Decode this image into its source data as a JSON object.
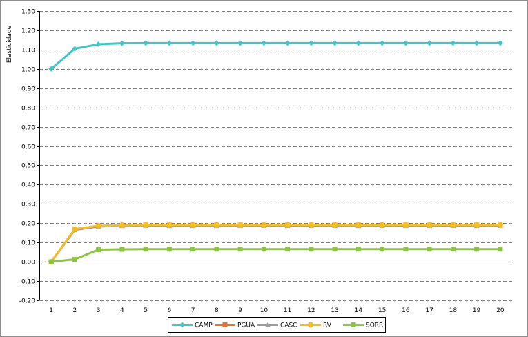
{
  "chart_data": {
    "type": "line",
    "title": "",
    "xlabel": "",
    "ylabel": "Elasticidade",
    "x": [
      1,
      2,
      3,
      4,
      5,
      6,
      7,
      8,
      9,
      10,
      11,
      12,
      13,
      14,
      15,
      16,
      17,
      18,
      19,
      20
    ],
    "x_tick_labels": [
      "1",
      "2",
      "3",
      "4",
      "5",
      "6",
      "7",
      "8",
      "9",
      "10",
      "11",
      "12",
      "13",
      "14",
      "15",
      "16",
      "17",
      "18",
      "19",
      "20"
    ],
    "ylim": [
      -0.2,
      1.3
    ],
    "y_ticks": [
      -0.2,
      -0.1,
      0.0,
      0.1,
      0.2,
      0.3,
      0.4,
      0.5,
      0.6,
      0.7,
      0.8,
      0.9,
      1.0,
      1.1,
      1.2,
      1.3
    ],
    "y_tick_labels": [
      "-0,20",
      "-0,10",
      "0,00",
      "0,10",
      "0,20",
      "0,30",
      "0,40",
      "0,50",
      "0,60",
      "0,70",
      "0,80",
      "0,90",
      "1,00",
      "1,10",
      "1,20",
      "1,30"
    ],
    "grid": "horizontal dashed",
    "legend_position": "bottom",
    "series": [
      {
        "name": "CAMP",
        "color": "#3fc6c6",
        "marker": "diamond",
        "values": [
          1.0,
          1.105,
          1.128,
          1.133,
          1.134,
          1.134,
          1.134,
          1.134,
          1.134,
          1.134,
          1.134,
          1.134,
          1.134,
          1.134,
          1.134,
          1.134,
          1.134,
          1.134,
          1.134,
          1.134
        ]
      },
      {
        "name": "PGUA",
        "color": "#e8712a",
        "marker": "square",
        "values": [
          0.0,
          0.168,
          0.185,
          0.189,
          0.19,
          0.19,
          0.19,
          0.19,
          0.19,
          0.19,
          0.19,
          0.19,
          0.19,
          0.19,
          0.19,
          0.19,
          0.19,
          0.19,
          0.19,
          0.19
        ]
      },
      {
        "name": "CASC",
        "color": "#9c9c9c",
        "marker": "triangle",
        "values": [
          0.0,
          0.166,
          0.183,
          0.187,
          0.188,
          0.188,
          0.188,
          0.188,
          0.188,
          0.188,
          0.188,
          0.188,
          0.188,
          0.188,
          0.188,
          0.188,
          0.188,
          0.188,
          0.188,
          0.188
        ]
      },
      {
        "name": "RV",
        "color": "#f5be1e",
        "marker": "circle",
        "values": [
          0.0,
          0.17,
          0.187,
          0.19,
          0.191,
          0.191,
          0.191,
          0.191,
          0.191,
          0.191,
          0.191,
          0.191,
          0.191,
          0.191,
          0.191,
          0.191,
          0.191,
          0.191,
          0.191,
          0.191
        ]
      },
      {
        "name": "SORR",
        "color": "#8cc63f",
        "marker": "square",
        "values": [
          0.0,
          0.013,
          0.063,
          0.065,
          0.066,
          0.066,
          0.066,
          0.066,
          0.066,
          0.066,
          0.066,
          0.066,
          0.066,
          0.066,
          0.066,
          0.066,
          0.066,
          0.066,
          0.066,
          0.066
        ]
      }
    ]
  }
}
